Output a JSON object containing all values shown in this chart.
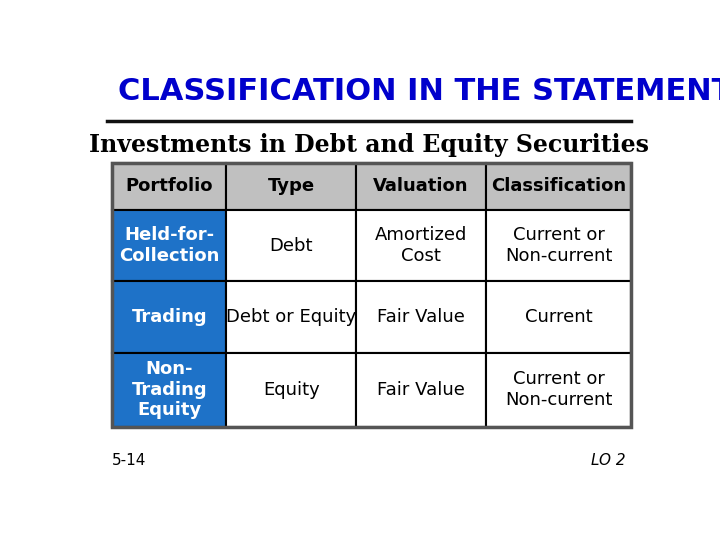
{
  "title": "CLASSIFICATION IN THE STATEMENT",
  "subtitle": "Investments in Debt and Equity Securities",
  "title_color": "#0000CC",
  "subtitle_color": "#000000",
  "header_bg": "#C0C0C0",
  "header_text_color": "#000000",
  "row_bg_blue": "#1E72C8",
  "row_bg_white": "#FFFFFF",
  "border_color": "#000000",
  "table_border_color": "#555555",
  "headers": [
    "Portfolio",
    "Type",
    "Valuation",
    "Classification"
  ],
  "rows": [
    {
      "portfolio": "Held-for-\nCollection",
      "type": "Debt",
      "valuation": "Amortized\nCost",
      "classification": "Current or\nNon-current"
    },
    {
      "portfolio": "Trading",
      "type": "Debt or Equity",
      "valuation": "Fair Value",
      "classification": "Current"
    },
    {
      "portfolio": "Non-\nTrading\nEquity",
      "type": "Equity",
      "valuation": "Fair Value",
      "classification": "Current or\nNon-current"
    }
  ],
  "footer_left": "5-14",
  "footer_right": "LO 2",
  "bg_color": "#FFFFFF"
}
